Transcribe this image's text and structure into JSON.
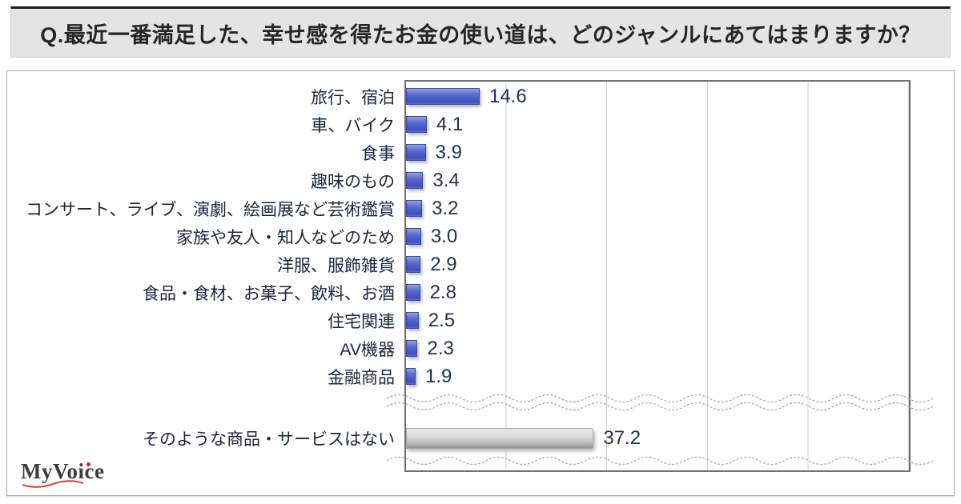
{
  "title": "Q.最近一番満足した、幸せ感を得たお金の使い道は、どのジャンルにあてはまりますか？",
  "logo_text": "MyVoice",
  "colors": {
    "title_bg": "#e4e4e4",
    "title_text": "#262626",
    "bar_blue": "#4b5cc8",
    "bar_blue_border": "#3a49a5",
    "bar_gray": "#bdbdbd",
    "value_text": "#203150",
    "label_text": "#1b2440",
    "grid_line": "#cdcdcd",
    "plot_border": "#6f6f6f",
    "logo_accent_red": "#cc2222"
  },
  "chart_data": {
    "type": "bar",
    "orientation": "horizontal",
    "title": "Q.最近一番満足した、幸せ感を得たお金の使い道は、どのジャンルにあてはまりますか？",
    "xlabel": "",
    "ylabel": "",
    "xlim": [
      0,
      100
    ],
    "gridline_interval": 20,
    "grid": true,
    "legend": false,
    "axis_break_before_last_category": true,
    "categories": [
      "旅行、宿泊",
      "車、バイク",
      "食事",
      "趣味のもの",
      "コンサート、ライブ、演劇、絵画展など芸術鑑賞",
      "家族や友人・知人などのため",
      "洋服、服飾雑貨",
      "食品・食材、お菓子、飲料、お酒",
      "住宅関連",
      "AV機器",
      "金融商品",
      "そのような商品・サービスはない"
    ],
    "values": [
      14.6,
      4.1,
      3.9,
      3.4,
      3.2,
      3.0,
      2.9,
      2.8,
      2.5,
      2.3,
      1.9,
      37.2
    ],
    "bar_color_keys": [
      "blue",
      "blue",
      "blue",
      "blue",
      "blue",
      "blue",
      "blue",
      "blue",
      "blue",
      "blue",
      "blue",
      "gray"
    ]
  }
}
